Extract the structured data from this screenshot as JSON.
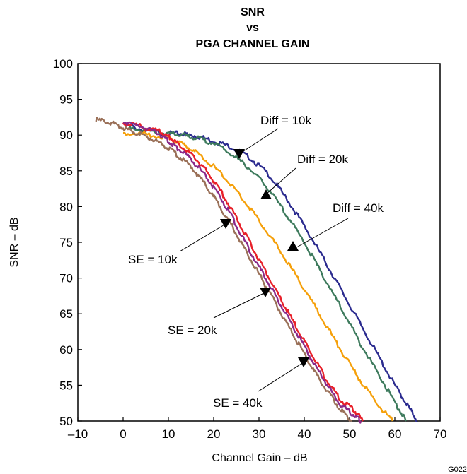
{
  "chart_data": {
    "type": "line",
    "title": [
      "SNR",
      "vs",
      "PGA CHANNEL GAIN"
    ],
    "xlabel": "Channel Gain – dB",
    "ylabel": "SNR – dB",
    "xlim": [
      -10,
      70
    ],
    "ylim": [
      50,
      100
    ],
    "xticks": [
      "–10",
      "0",
      "10",
      "20",
      "30",
      "40",
      "50",
      "60",
      "70"
    ],
    "yticks": [
      "50",
      "55",
      "60",
      "65",
      "70",
      "75",
      "80",
      "85",
      "90",
      "95",
      "100"
    ],
    "grid": false,
    "figure_code": "G022",
    "series": [
      {
        "name": "Diff = 10k",
        "color": "#2b2b8f",
        "x": [
          0,
          5,
          10,
          13,
          16,
          20,
          24,
          28,
          32,
          36,
          40,
          44,
          48,
          52,
          56,
          60,
          63,
          65
        ],
        "y": [
          91.5,
          90.6,
          90.2,
          90.2,
          89.9,
          89.2,
          88.3,
          86.8,
          84.6,
          81.2,
          77.3,
          73.0,
          68.5,
          64.0,
          59.5,
          55.0,
          52.0,
          50.0
        ]
      },
      {
        "name": "Diff = 20k",
        "color": "#3d7a5c",
        "x": [
          0,
          5,
          10,
          13,
          16,
          20,
          24,
          28,
          32,
          36,
          40,
          44,
          48,
          52,
          56,
          60,
          62.5
        ],
        "y": [
          91.5,
          90.6,
          90.2,
          90.0,
          89.6,
          88.9,
          87.3,
          85.3,
          82.5,
          79.0,
          75.0,
          70.5,
          66.0,
          61.3,
          57.0,
          52.6,
          50.0
        ]
      },
      {
        "name": "Diff = 40k",
        "color": "#f5a00a",
        "x": [
          0,
          5,
          10,
          13,
          16,
          20,
          24,
          28,
          32,
          36,
          40,
          44,
          48,
          52,
          56,
          59.5
        ],
        "y": [
          90.3,
          90.1,
          89.6,
          88.8,
          87.6,
          85.6,
          83.0,
          79.8,
          76.3,
          72.5,
          68.5,
          64.3,
          60.0,
          56.0,
          52.5,
          50.0
        ]
      },
      {
        "name": "SE = 10k",
        "color": "#e8202a",
        "x": [
          0,
          4,
          8,
          10,
          12,
          15,
          18,
          21,
          24,
          27,
          30,
          33,
          36,
          39,
          42,
          45,
          48,
          51,
          53
        ],
        "y": [
          91.8,
          91.2,
          90.5,
          89.8,
          88.8,
          87.3,
          85.3,
          82.7,
          79.6,
          76.1,
          72.6,
          69.1,
          65.7,
          62.3,
          58.9,
          55.7,
          53.0,
          51.5,
          50.0
        ]
      },
      {
        "name": "SE = 20k",
        "color": "#8a2a8a",
        "x": [
          0,
          4,
          8,
          10,
          12,
          15,
          18,
          21,
          24,
          27,
          30,
          33,
          36,
          39,
          42,
          45,
          48,
          51,
          52.5
        ],
        "y": [
          91.9,
          91.2,
          90.2,
          89.2,
          88.2,
          86.6,
          84.4,
          81.8,
          78.6,
          75.0,
          71.6,
          68.2,
          64.9,
          61.5,
          58.2,
          55.1,
          52.3,
          50.8,
          50.0
        ]
      },
      {
        "name": "SE = 40k",
        "color": "#9a7058",
        "x": [
          -6,
          -3,
          0,
          3,
          6,
          9,
          12,
          15,
          18,
          21,
          24,
          27,
          30,
          33,
          36,
          39,
          42,
          45,
          48,
          50.5
        ],
        "y": [
          92.2,
          91.8,
          91.0,
          90.3,
          89.6,
          88.6,
          87.2,
          85.6,
          83.2,
          80.4,
          77.3,
          73.9,
          70.6,
          67.2,
          63.8,
          60.5,
          57.2,
          54.2,
          51.6,
          50.0
        ]
      }
    ],
    "annotations": [
      {
        "text": "Diff = 10k",
        "arrow_points": "down"
      },
      {
        "text": "Diff = 20k",
        "arrow_points": "up"
      },
      {
        "text": "Diff = 40k",
        "arrow_points": "up"
      },
      {
        "text": "SE = 10k",
        "arrow_points": "down"
      },
      {
        "text": "SE = 20k",
        "arrow_points": "down"
      },
      {
        "text": "SE = 40k",
        "arrow_points": "down"
      }
    ]
  }
}
